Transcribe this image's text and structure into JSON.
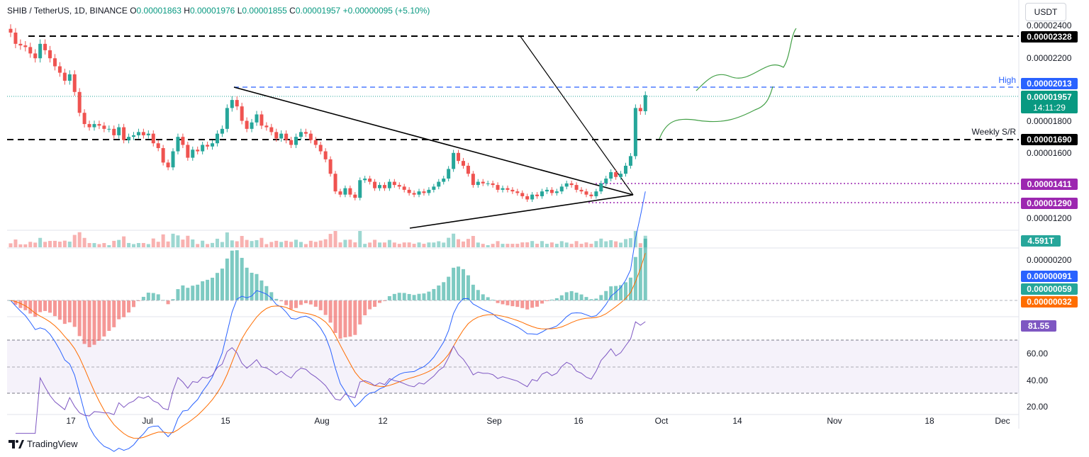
{
  "header": {
    "symbol": "SHIB / TetherUS, 1D, BINANCE",
    "o_label": "O",
    "o": "0.00001863",
    "h_label": "H",
    "h": "0.00001976",
    "l_label": "L",
    "l": "0.00001855",
    "c_label": "C",
    "c": "0.00001957",
    "change": "+0.00000095 (+5.10%)"
  },
  "currency_button": "USDT",
  "branding": "TradingView",
  "colors": {
    "up": "#26a69a",
    "down": "#ef5350",
    "macd_line": "#2962ff",
    "signal_line": "#ff6d00",
    "rsi_line": "#7e57c2",
    "support": "#9c27b0",
    "high": "#2962ff",
    "projection": "#43a047"
  },
  "chart_data": {
    "type": "candlestick",
    "price_axis": {
      "ticks": [
        "0.00002400",
        "0.00002200",
        "0.00001800",
        "0.00001600",
        "0.00001200"
      ]
    },
    "time_axis": [
      "17",
      "Jul",
      "15",
      "Aug",
      "12",
      "Sep",
      "16",
      "Oct",
      "14",
      "Nov",
      "18",
      "Dec"
    ],
    "levels": [
      {
        "label": "",
        "value": "0.00002328",
        "style": "black-dashed"
      },
      {
        "label": "High",
        "value": "0.00002013",
        "style": "blue-dashed"
      },
      {
        "label": "Weekly S/R",
        "value": "0.00001690",
        "style": "black-dashed"
      },
      {
        "label": "",
        "value": "0.00001411",
        "style": "purple-dotted"
      },
      {
        "label": "",
        "value": "0.00001290",
        "style": "purple-dotted"
      }
    ],
    "last_price": {
      "value": "0.00001957",
      "countdown": "14:11:29"
    },
    "candles_close": [
      2.35e-05,
      2.28e-05,
      2.27e-05,
      2.26e-05,
      2.22e-05,
      2.19e-05,
      2.28e-05,
      2.24e-05,
      2.19e-05,
      2.14e-05,
      2.1e-05,
      2.05e-05,
      2.09e-05,
      1.98e-05,
      1.85e-05,
      1.78e-05,
      1.76e-05,
      1.78e-05,
      1.77e-05,
      1.75e-05,
      1.75e-05,
      1.71e-05,
      1.76e-05,
      1.68e-05,
      1.7e-05,
      1.71e-05,
      1.73e-05,
      1.71e-05,
      1.72e-05,
      1.66e-05,
      1.63e-05,
      1.54e-05,
      1.51e-05,
      1.61e-05,
      1.7e-05,
      1.65e-05,
      1.57e-05,
      1.62e-05,
      1.61e-05,
      1.65e-05,
      1.64e-05,
      1.66e-05,
      1.72e-05,
      1.75e-05,
      1.88e-05,
      1.93e-05,
      1.89e-05,
      1.8e-05,
      1.75e-05,
      1.79e-05,
      1.84e-05,
      1.77e-05,
      1.76e-05,
      1.73e-05,
      1.69e-05,
      1.72e-05,
      1.68e-05,
      1.65e-05,
      1.7e-05,
      1.73e-05,
      1.72e-05,
      1.68e-05,
      1.65e-05,
      1.61e-05,
      1.56e-05,
      1.47e-05,
      1.36e-05,
      1.34e-05,
      1.38e-05,
      1.34e-05,
      1.32e-05,
      1.43e-05,
      1.44e-05,
      1.42e-05,
      1.38e-05,
      1.4e-05,
      1.38e-05,
      1.42e-05,
      1.4e-05,
      1.39e-05,
      1.37e-05,
      1.35e-05,
      1.34e-05,
      1.36e-05,
      1.35e-05,
      1.37e-05,
      1.39e-05,
      1.42e-05,
      1.44e-05,
      1.5e-05,
      1.6e-05,
      1.55e-05,
      1.52e-05,
      1.47e-05,
      1.4e-05,
      1.42e-05,
      1.41e-05,
      1.41e-05,
      1.4e-05,
      1.37e-05,
      1.38e-05,
      1.37e-05,
      1.36e-05,
      1.35e-05,
      1.33e-05,
      1.31e-05,
      1.34e-05,
      1.33e-05,
      1.36e-05,
      1.37e-05,
      1.35e-05,
      1.36e-05,
      1.39e-05,
      1.41e-05,
      1.4e-05,
      1.37e-05,
      1.36e-05,
      1.34e-05,
      1.33e-05,
      1.36e-05,
      1.41e-05,
      1.44e-05,
      1.48e-05,
      1.45e-05,
      1.47e-05,
      1.52e-05,
      1.58e-05,
      1.88e-05,
      1.86e-05,
      1.96e-05
    ],
    "volume_label": "4.591T",
    "macd": {
      "axis_top": "0.00000200",
      "macd_value": "0.00000091",
      "hist_value": "0.00000059",
      "signal_value": "0.00000032"
    },
    "rsi": {
      "value": "81.55",
      "ticks": [
        "60.00",
        "40.00",
        "20.00"
      ],
      "bands": [
        70,
        50,
        30
      ]
    }
  }
}
